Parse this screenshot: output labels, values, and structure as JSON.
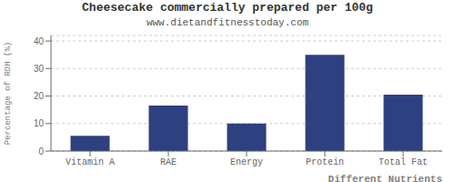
{
  "chart_data": {
    "type": "bar",
    "title": "Cheesecake commercially prepared per 100g",
    "subtitle": "www.dietandfitnesstoday.com",
    "xlabel": "Different Nutrients",
    "ylabel": "Percentage of RDH (%)",
    "categories": [
      "Vitamin A",
      "RAE",
      "Energy",
      "Protein",
      "Total Fat"
    ],
    "values": [
      5.5,
      16.5,
      10.0,
      35.0,
      20.5
    ],
    "color": "#2d4080",
    "ylim": [
      0,
      42
    ],
    "yticks": [
      0,
      10,
      20,
      30,
      40
    ],
    "grid": true
  }
}
